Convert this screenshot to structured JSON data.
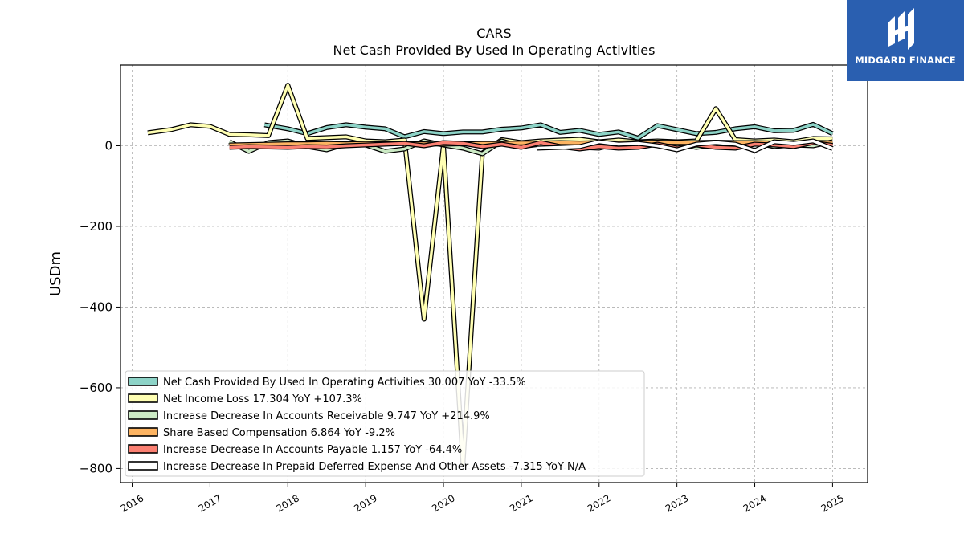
{
  "brand": {
    "name": "MIDGARD FINANCE",
    "bg_color": "#2a5fb0"
  },
  "chart_data": {
    "type": "line",
    "title": "CARS",
    "subtitle": "Net Cash Provided By Used In Operating Activities",
    "xlabel": "",
    "ylabel": "USDm",
    "xlim": [
      2015.85,
      2025.45
    ],
    "ylim": [
      -835,
      200
    ],
    "x_ticks": [
      2016,
      2017,
      2018,
      2019,
      2020,
      2021,
      2022,
      2023,
      2024,
      2025
    ],
    "x_tick_labels": [
      "2016",
      "2017",
      "2018",
      "2019",
      "2020",
      "2021",
      "2022",
      "2023",
      "2024",
      "2025"
    ],
    "y_ticks": [
      0,
      -200,
      -400,
      -600,
      -800
    ],
    "y_tick_labels": [
      "0",
      "−200",
      "−400",
      "−600",
      "−800"
    ],
    "grid": true,
    "legend_position": "lower-left",
    "series": [
      {
        "name": "Net Cash Provided By Used In Operating Activities",
        "legend": "Net Cash Provided By Used In Operating Activities  30.007 YoY -33.5%",
        "color": "#8dd3c7",
        "x": [
          2017.7,
          2018.0,
          2018.25,
          2018.5,
          2018.75,
          2019.0,
          2019.25,
          2019.5,
          2019.75,
          2020.0,
          2020.25,
          2020.5,
          2020.75,
          2021.0,
          2021.25,
          2021.5,
          2021.75,
          2022.0,
          2022.25,
          2022.5,
          2022.75,
          2023.0,
          2023.25,
          2023.5,
          2023.75,
          2024.0,
          2024.25,
          2024.5,
          2024.75,
          2025.0
        ],
        "y": [
          52,
          42,
          30,
          45,
          52,
          46,
          42,
          22,
          35,
          30,
          34,
          34,
          41,
          44,
          52,
          33,
          38,
          28,
          34,
          19,
          50,
          40,
          30,
          33,
          42,
          47,
          37,
          38,
          53,
          30
        ]
      },
      {
        "name": "Net Income Loss",
        "legend": "Net Income Loss  17.304 YoY +107.3%",
        "color": "#ffffb3",
        "x": [
          2016.2,
          2016.5,
          2016.75,
          2017.0,
          2017.25,
          2017.5,
          2017.75,
          2018.0,
          2018.25,
          2018.5,
          2018.75,
          2019.0,
          2019.25,
          2019.5,
          2019.75,
          2020.0,
          2020.25,
          2020.5,
          2020.75,
          2021.0,
          2021.25,
          2021.5,
          2021.75,
          2022.0,
          2022.25,
          2022.5,
          2022.75,
          2023.0,
          2023.25,
          2023.5,
          2023.75,
          2024.0,
          2024.25,
          2024.5,
          2024.75,
          2025.0
        ],
        "y": [
          32,
          40,
          52,
          48,
          28,
          27,
          25,
          150,
          18,
          20,
          22,
          12,
          10,
          14,
          -430,
          2,
          -790,
          -18,
          15,
          8,
          12,
          14,
          16,
          10,
          14,
          10,
          12,
          10,
          12,
          92,
          15,
          12,
          14,
          10,
          18,
          17
        ]
      },
      {
        "name": "Increase Decrease In Accounts Receivable",
        "legend": "Increase Decrease In Accounts Receivable  9.747 YoY +214.9%",
        "color": "#ccebc5",
        "x": [
          2017.25,
          2017.5,
          2017.75,
          2018.0,
          2018.25,
          2018.5,
          2018.75,
          2019.0,
          2019.25,
          2019.5,
          2019.75,
          2020.0,
          2020.25,
          2020.5,
          2020.75,
          2021.0,
          2021.25,
          2021.5,
          2021.75,
          2022.0,
          2022.25,
          2022.5,
          2022.75,
          2023.0,
          2023.25,
          2023.5,
          2023.75,
          2024.0,
          2024.25,
          2024.5,
          2024.75,
          2025.0
        ],
        "y": [
          10,
          -14,
          8,
          12,
          -2,
          -10,
          4,
          2,
          -14,
          -8,
          12,
          2,
          -6,
          -20,
          12,
          -2,
          4,
          2,
          -4,
          -6,
          6,
          -2,
          8,
          4,
          -4,
          2,
          4,
          8,
          -2,
          2,
          0,
          10
        ]
      },
      {
        "name": "Share Based Compensation",
        "legend": "Share Based Compensation  6.864 YoY -9.2%",
        "color": "#fdb462",
        "x": [
          2017.25,
          2017.5,
          2017.75,
          2018.0,
          2018.25,
          2018.5,
          2018.75,
          2019.0,
          2019.25,
          2019.5,
          2019.75,
          2020.0,
          2020.25,
          2020.5,
          2020.75,
          2021.0,
          2021.25,
          2021.5,
          2021.75,
          2022.0,
          2022.25,
          2022.5,
          2022.75,
          2023.0,
          2023.25,
          2023.5,
          2023.75,
          2024.0,
          2024.25,
          2024.5,
          2024.75,
          2025.0
        ],
        "y": [
          2,
          3,
          4,
          5,
          5,
          6,
          5,
          6,
          5,
          6,
          5,
          4,
          5,
          6,
          6,
          7,
          7,
          8,
          7,
          8,
          7,
          8,
          9,
          8,
          8,
          9,
          8,
          8,
          7,
          7,
          8,
          7
        ]
      },
      {
        "name": "Increase Decrease In Accounts Payable",
        "legend": "Increase Decrease In Accounts Payable  1.157 YoY -64.4%",
        "color": "#fb8072",
        "x": [
          2017.25,
          2017.5,
          2017.75,
          2018.0,
          2018.25,
          2018.5,
          2018.75,
          2019.0,
          2019.25,
          2019.5,
          2019.75,
          2020.0,
          2020.25,
          2020.5,
          2020.75,
          2021.0,
          2021.25,
          2021.5,
          2021.75,
          2022.0,
          2022.25,
          2022.5,
          2022.75,
          2023.0,
          2023.25,
          2023.5,
          2023.75,
          2024.0,
          2024.25,
          2024.5,
          2024.75,
          2025.0
        ],
        "y": [
          -4,
          -2,
          -3,
          -4,
          -2,
          -3,
          0,
          2,
          4,
          6,
          0,
          8,
          6,
          -2,
          4,
          -4,
          8,
          -2,
          -8,
          -2,
          -6,
          -4,
          4,
          -6,
          2,
          -4,
          -6,
          4,
          2,
          -2,
          8,
          1
        ]
      },
      {
        "name": "Increase Decrease In Prepaid Deferred Expense And Other Assets",
        "legend": "Increase Decrease In Prepaid Deferred Expense And Other Assets  -7.315 YoY N/A",
        "color": "#ffffff",
        "x": [
          2021.2,
          2021.5,
          2021.75,
          2022.0,
          2022.25,
          2022.5,
          2022.75,
          2023.0,
          2023.25,
          2023.5,
          2023.75,
          2024.0,
          2024.25,
          2024.5,
          2024.75,
          2025.0
        ],
        "y": [
          -6,
          -4,
          -2,
          10,
          4,
          6,
          0,
          -10,
          4,
          8,
          4,
          -12,
          10,
          6,
          12,
          -7
        ]
      }
    ]
  }
}
